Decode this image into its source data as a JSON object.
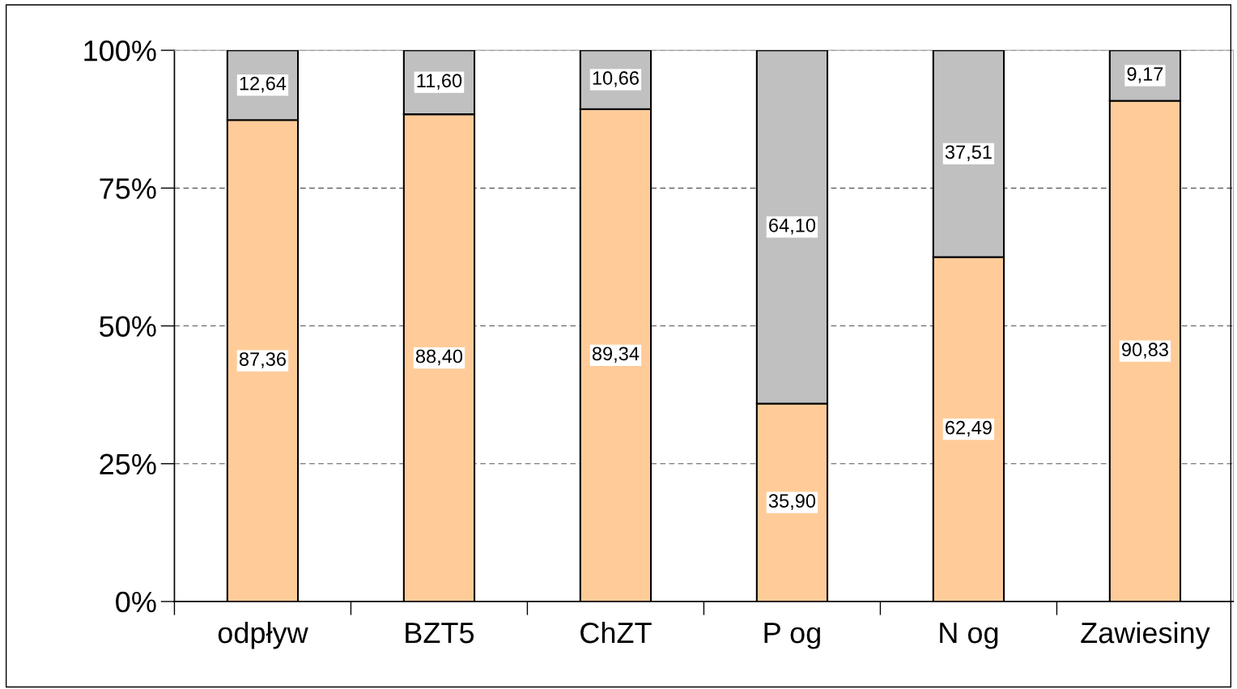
{
  "chart_data": {
    "type": "bar",
    "stacked": true,
    "categories": [
      "odpływ",
      "BZT5",
      "ChZT",
      "P og",
      "N og",
      "Zawiesiny"
    ],
    "series": [
      {
        "color": "#ffcc99",
        "values": [
          87.36,
          88.4,
          89.34,
          35.9,
          62.49,
          90.83
        ],
        "value_labels": [
          "87,36",
          "88,40",
          "89,34",
          "35,90",
          "62,49",
          "90,83"
        ]
      },
      {
        "color": "#c0c0c0",
        "values": [
          12.64,
          11.6,
          10.66,
          64.1,
          37.51,
          9.17
        ],
        "value_labels": [
          "12,64",
          "11,60",
          "10,66",
          "64,10",
          "37,51",
          "9,17"
        ]
      }
    ],
    "ylim": [
      0,
      100
    ],
    "yticks": [
      {
        "value": 0,
        "label": "0%"
      },
      {
        "value": 25,
        "label": "25%"
      },
      {
        "value": 50,
        "label": "50%"
      },
      {
        "value": 75,
        "label": "75%"
      },
      {
        "value": 100,
        "label": "100%"
      }
    ],
    "grid": "y",
    "legend": false
  }
}
